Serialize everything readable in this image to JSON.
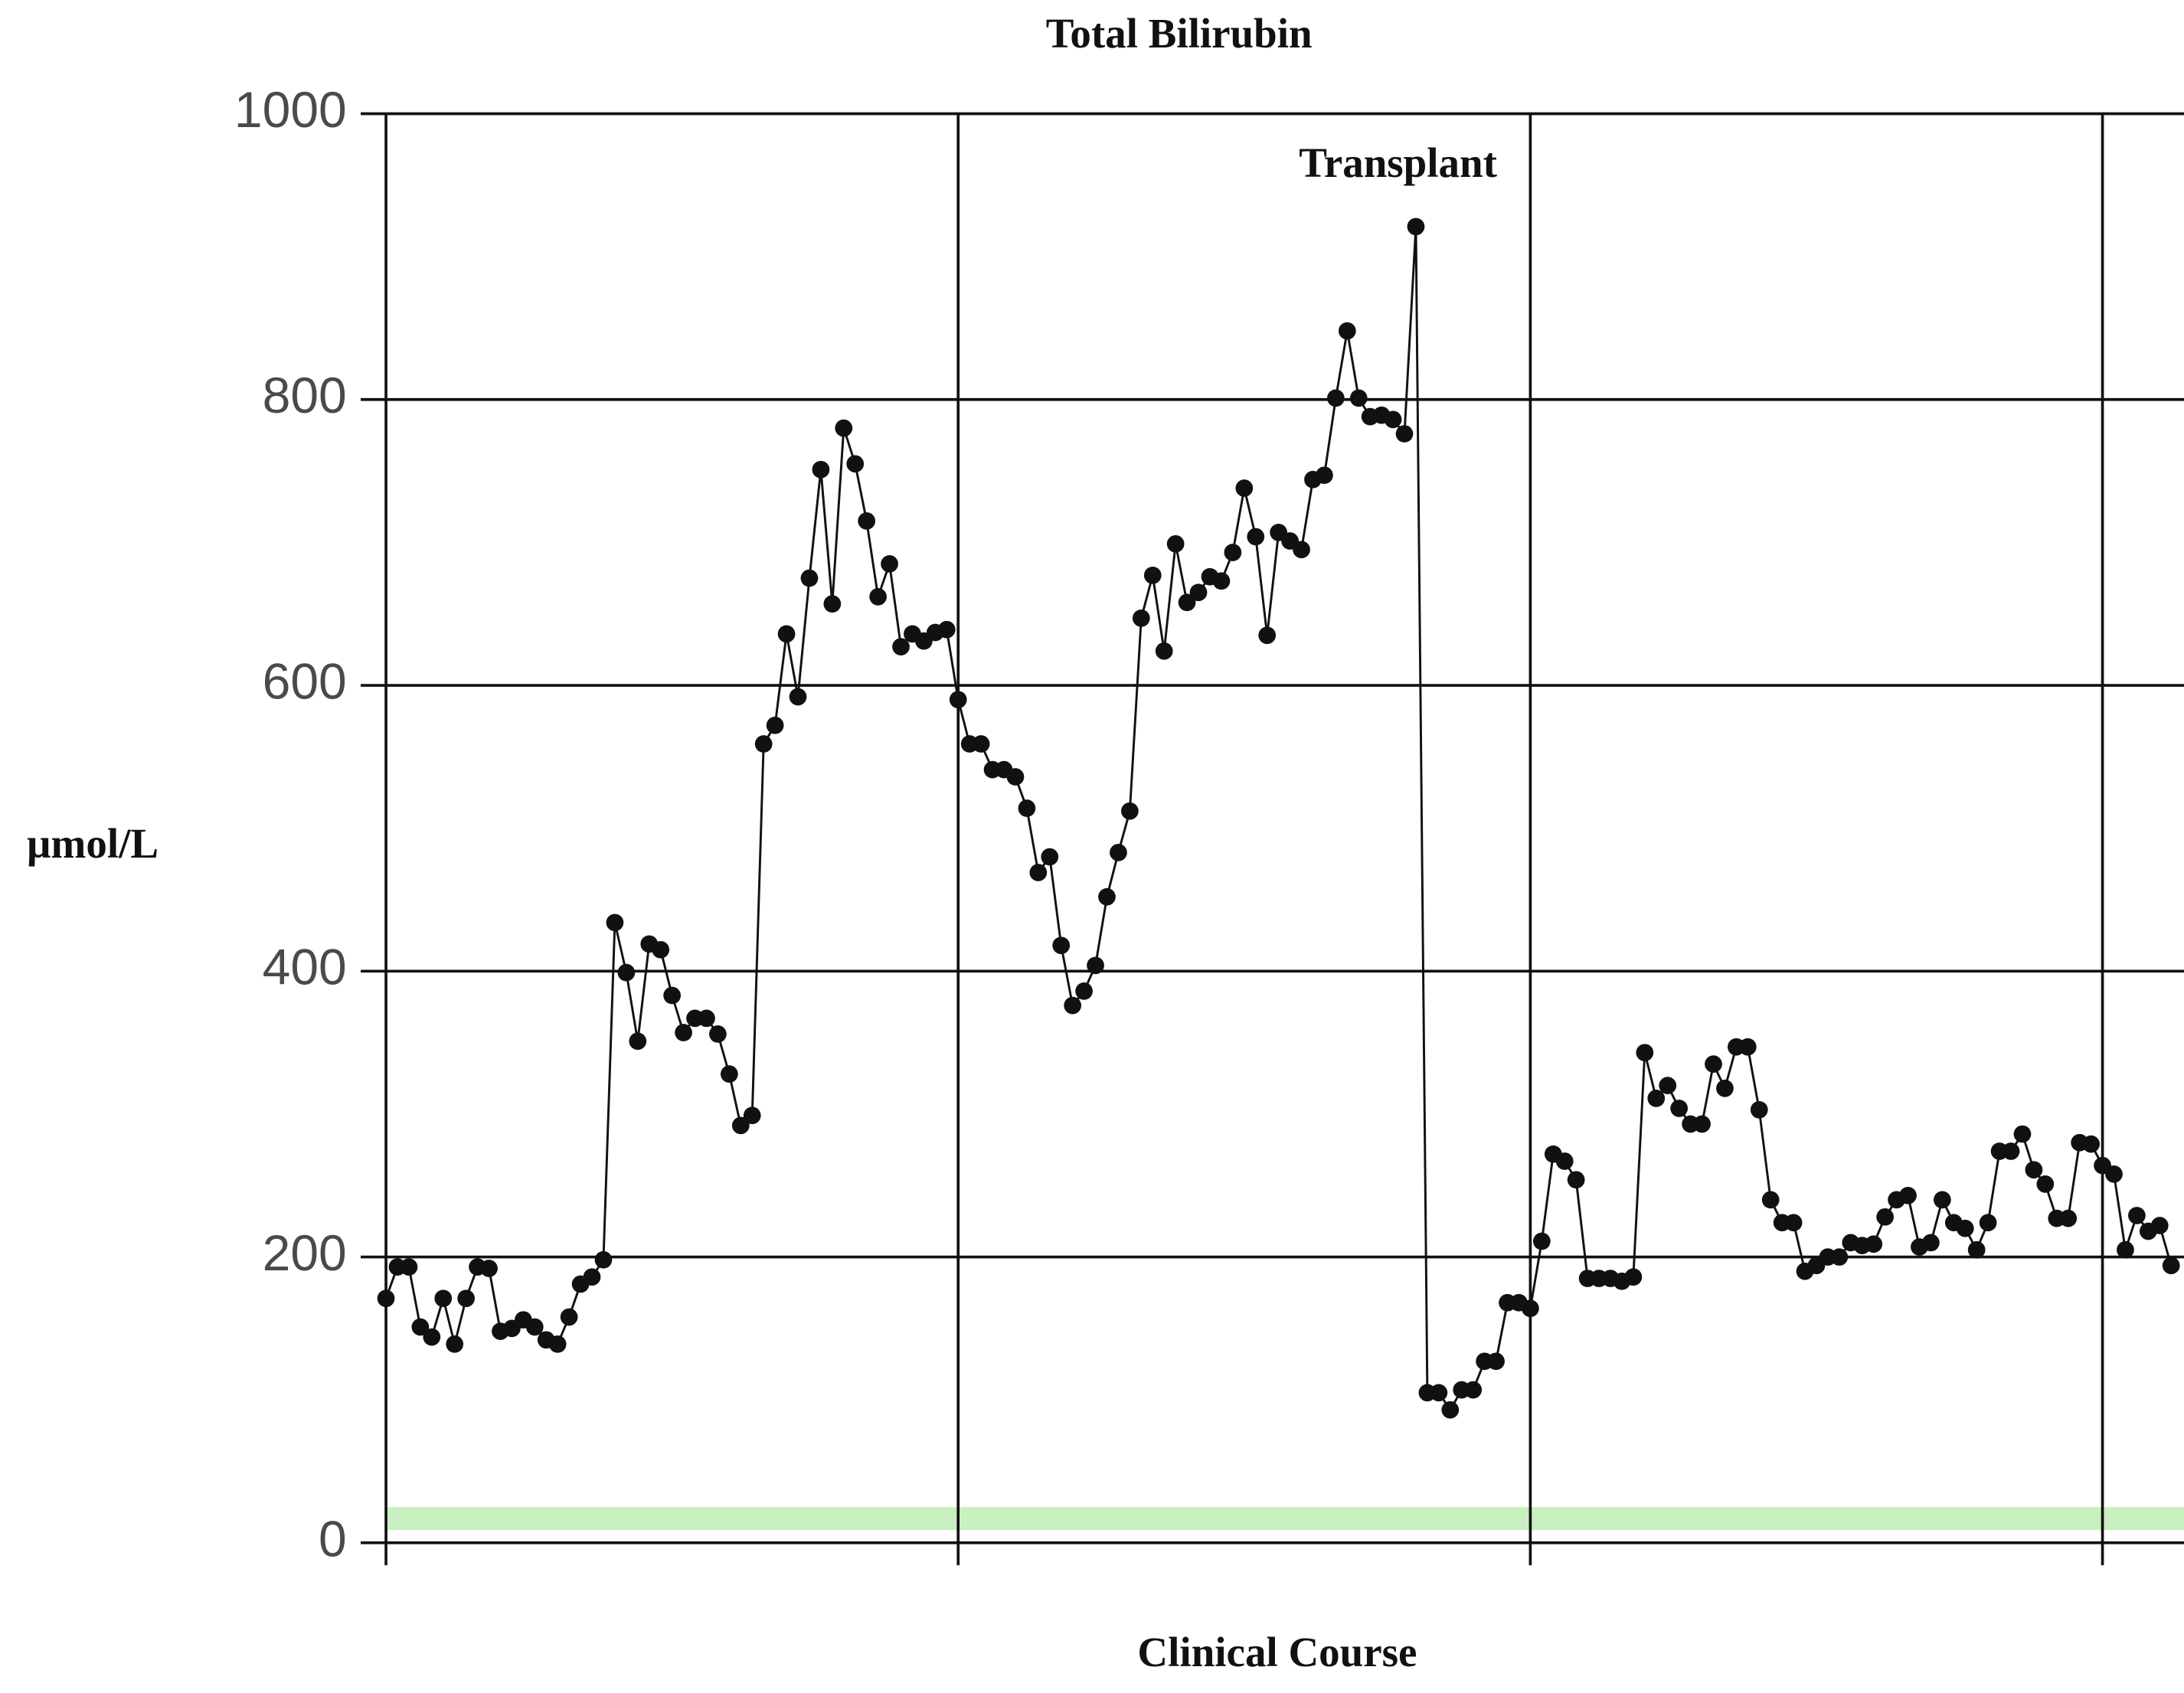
{
  "chart_data": {
    "type": "line",
    "title": "Total Bilirubin",
    "x_label": "Clinical Course",
    "y_label": "µmol/L",
    "annotation": "Transplant",
    "series": [
      {
        "name": "Total Bilirubin",
        "color": "#111111",
        "values": [
          171,
          193,
          193,
          151,
          144,
          171,
          139,
          171,
          193,
          192,
          148,
          150,
          156,
          151,
          142,
          139,
          158,
          181,
          186,
          198,
          434,
          399,
          351,
          419,
          415,
          383,
          357,
          367,
          367,
          356,
          328,
          292,
          299,
          559,
          572,
          636,
          592,
          675,
          751,
          657,
          780,
          755,
          715,
          662,
          685,
          627,
          636,
          631,
          637,
          639,
          590,
          559,
          559,
          541,
          541,
          536,
          514,
          469,
          480,
          418,
          376,
          386,
          404,
          452,
          483,
          512,
          647,
          677,
          624,
          699,
          658,
          665,
          676,
          673,
          693,
          738,
          704,
          635,
          707,
          701,
          695,
          744,
          747,
          801,
          848,
          801,
          788,
          789,
          786,
          776,
          921,
          105,
          105,
          93,
          107,
          107,
          127,
          127,
          168,
          168,
          164,
          211,
          272,
          267,
          254,
          185,
          185,
          185,
          183,
          186,
          343,
          311,
          320,
          304,
          293,
          293,
          335,
          318,
          347,
          347,
          303,
          240,
          224,
          224,
          190,
          194,
          200,
          200,
          210,
          208,
          209,
          228,
          240,
          243,
          207,
          210,
          240,
          224,
          220,
          205,
          224,
          274,
          274,
          286,
          261,
          251,
          227,
          227,
          280,
          279,
          264,
          258,
          205,
          229,
          218,
          222,
          194
        ]
      }
    ],
    "reference_band": {
      "range": [
        9,
        25
      ],
      "color": "#c8f0c0"
    },
    "xlim": [
      0,
      157
    ],
    "xticks": [
      0,
      50,
      100,
      150
    ],
    "ylim": [
      0,
      1000
    ],
    "yticks": [
      0,
      200,
      400,
      600,
      800,
      1000
    ],
    "grid": true
  }
}
